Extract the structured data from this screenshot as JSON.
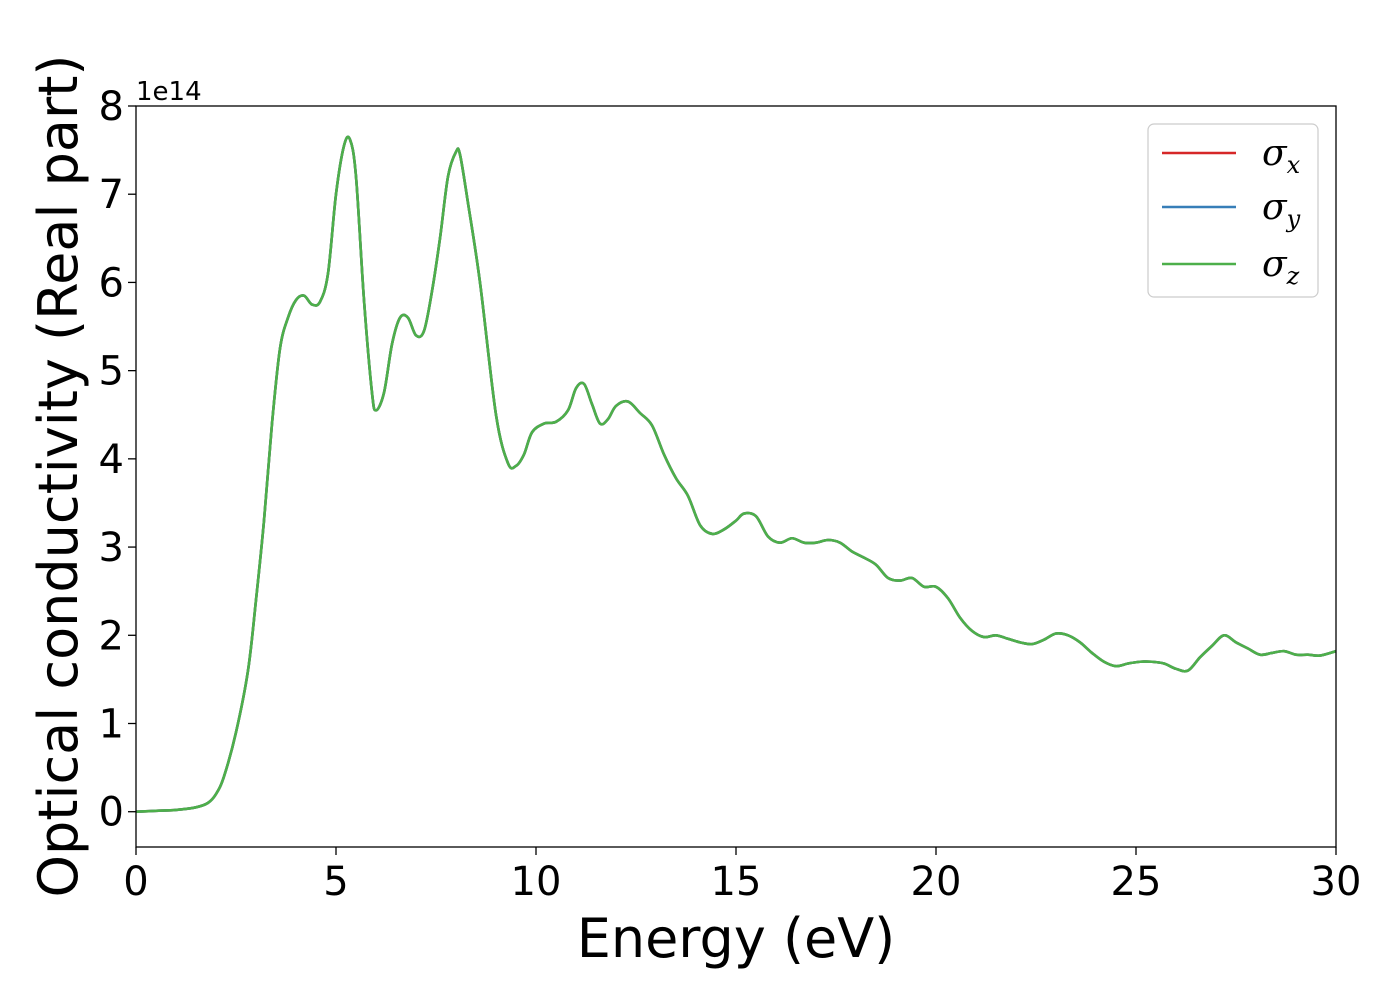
{
  "chart_data": {
    "type": "line",
    "xlabel": "Energy (eV)",
    "ylabel": "Optical conductivity (Real part)",
    "y_offset_text": "1e14",
    "xlim": [
      0,
      30
    ],
    "ylim": [
      -0.4,
      8.0
    ],
    "x_ticks": [
      0,
      5,
      10,
      15,
      20,
      25,
      30
    ],
    "x_tick_labels": [
      "0",
      "5",
      "10",
      "15",
      "20",
      "25",
      "30"
    ],
    "y_ticks": [
      0,
      1,
      2,
      3,
      4,
      5,
      6,
      7,
      8
    ],
    "y_tick_labels": [
      "0",
      "1",
      "2",
      "3",
      "4",
      "5",
      "6",
      "7",
      "8"
    ],
    "grid": false,
    "legend_position": "top-right",
    "colors": {
      "sigma_x": "#d62728",
      "sigma_y": "#377eb8",
      "sigma_z": "#4daf4a"
    },
    "x": [
      0,
      0.5,
      1.0,
      1.5,
      1.8,
      2.0,
      2.2,
      2.5,
      2.8,
      3.0,
      3.2,
      3.4,
      3.6,
      3.8,
      4.0,
      4.2,
      4.4,
      4.6,
      4.8,
      5.0,
      5.2,
      5.35,
      5.5,
      5.7,
      5.9,
      6.0,
      6.2,
      6.4,
      6.6,
      6.8,
      7.0,
      7.2,
      7.4,
      7.6,
      7.8,
      8.0,
      8.1,
      8.3,
      8.6,
      9.0,
      9.3,
      9.5,
      9.7,
      9.9,
      10.2,
      10.5,
      10.8,
      11.0,
      11.2,
      11.4,
      11.6,
      11.8,
      12.0,
      12.3,
      12.6,
      12.9,
      13.2,
      13.5,
      13.8,
      14.1,
      14.4,
      14.7,
      15.0,
      15.2,
      15.5,
      15.8,
      16.1,
      16.4,
      16.7,
      17.0,
      17.3,
      17.6,
      17.9,
      18.2,
      18.5,
      18.8,
      19.1,
      19.4,
      19.7,
      20.0,
      20.3,
      20.6,
      20.9,
      21.2,
      21.5,
      21.8,
      22.1,
      22.4,
      22.7,
      23.0,
      23.3,
      23.6,
      23.9,
      24.2,
      24.5,
      24.8,
      25.1,
      25.4,
      25.7,
      26.0,
      26.3,
      26.6,
      26.9,
      27.2,
      27.5,
      27.8,
      28.1,
      28.4,
      28.7,
      29.0,
      29.3,
      29.6,
      30.0
    ],
    "series": [
      {
        "name": "σx",
        "values": [
          0.0,
          0.01,
          0.02,
          0.05,
          0.1,
          0.2,
          0.4,
          0.9,
          1.6,
          2.4,
          3.3,
          4.4,
          5.25,
          5.6,
          5.8,
          5.85,
          5.75,
          5.78,
          6.1,
          7.0,
          7.55,
          7.62,
          7.2,
          5.8,
          4.75,
          4.55,
          4.75,
          5.3,
          5.6,
          5.6,
          5.4,
          5.45,
          5.9,
          6.5,
          7.2,
          7.48,
          7.45,
          6.9,
          6.0,
          4.5,
          3.95,
          3.92,
          4.05,
          4.3,
          4.4,
          4.42,
          4.55,
          4.8,
          4.85,
          4.62,
          4.4,
          4.45,
          4.6,
          4.65,
          4.52,
          4.38,
          4.05,
          3.78,
          3.58,
          3.25,
          3.15,
          3.2,
          3.3,
          3.38,
          3.35,
          3.12,
          3.05,
          3.1,
          3.05,
          3.05,
          3.08,
          3.05,
          2.95,
          2.88,
          2.8,
          2.65,
          2.62,
          2.65,
          2.55,
          2.55,
          2.42,
          2.2,
          2.05,
          1.98,
          2.0,
          1.96,
          1.92,
          1.9,
          1.95,
          2.02,
          2.0,
          1.92,
          1.8,
          1.7,
          1.65,
          1.68,
          1.7,
          1.7,
          1.68,
          1.62,
          1.6,
          1.75,
          1.88,
          2.0,
          1.92,
          1.85,
          1.78,
          1.8,
          1.82,
          1.78,
          1.78,
          1.77,
          1.82
        ]
      },
      {
        "name": "σy",
        "values": [
          0.0,
          0.01,
          0.02,
          0.05,
          0.1,
          0.2,
          0.4,
          0.9,
          1.6,
          2.4,
          3.3,
          4.4,
          5.25,
          5.6,
          5.8,
          5.85,
          5.75,
          5.78,
          6.1,
          7.0,
          7.55,
          7.62,
          7.2,
          5.8,
          4.75,
          4.55,
          4.75,
          5.3,
          5.6,
          5.6,
          5.4,
          5.45,
          5.9,
          6.5,
          7.2,
          7.48,
          7.45,
          6.9,
          6.0,
          4.5,
          3.95,
          3.92,
          4.05,
          4.3,
          4.4,
          4.42,
          4.55,
          4.8,
          4.85,
          4.62,
          4.4,
          4.45,
          4.6,
          4.65,
          4.52,
          4.38,
          4.05,
          3.78,
          3.58,
          3.25,
          3.15,
          3.2,
          3.3,
          3.38,
          3.35,
          3.12,
          3.05,
          3.1,
          3.05,
          3.05,
          3.08,
          3.05,
          2.95,
          2.88,
          2.8,
          2.65,
          2.62,
          2.65,
          2.55,
          2.55,
          2.42,
          2.2,
          2.05,
          1.98,
          2.0,
          1.96,
          1.92,
          1.9,
          1.95,
          2.02,
          2.0,
          1.92,
          1.8,
          1.7,
          1.65,
          1.68,
          1.7,
          1.7,
          1.68,
          1.62,
          1.6,
          1.75,
          1.88,
          2.0,
          1.92,
          1.85,
          1.78,
          1.8,
          1.82,
          1.78,
          1.78,
          1.77,
          1.82
        ]
      },
      {
        "name": "σz",
        "values": [
          0.0,
          0.01,
          0.02,
          0.05,
          0.1,
          0.2,
          0.4,
          0.9,
          1.6,
          2.4,
          3.3,
          4.4,
          5.25,
          5.6,
          5.8,
          5.85,
          5.75,
          5.78,
          6.1,
          7.0,
          7.55,
          7.62,
          7.2,
          5.8,
          4.75,
          4.55,
          4.75,
          5.3,
          5.6,
          5.6,
          5.4,
          5.45,
          5.9,
          6.5,
          7.2,
          7.48,
          7.45,
          6.9,
          6.0,
          4.5,
          3.95,
          3.92,
          4.05,
          4.3,
          4.4,
          4.42,
          4.55,
          4.8,
          4.85,
          4.62,
          4.4,
          4.45,
          4.6,
          4.65,
          4.52,
          4.38,
          4.05,
          3.78,
          3.58,
          3.25,
          3.15,
          3.2,
          3.3,
          3.38,
          3.35,
          3.12,
          3.05,
          3.1,
          3.05,
          3.05,
          3.08,
          3.05,
          2.95,
          2.88,
          2.8,
          2.65,
          2.62,
          2.65,
          2.55,
          2.55,
          2.42,
          2.2,
          2.05,
          1.98,
          2.0,
          1.96,
          1.92,
          1.9,
          1.95,
          2.02,
          2.0,
          1.92,
          1.8,
          1.7,
          1.65,
          1.68,
          1.7,
          1.7,
          1.68,
          1.62,
          1.6,
          1.75,
          1.88,
          2.0,
          1.92,
          1.85,
          1.78,
          1.8,
          1.82,
          1.78,
          1.78,
          1.77,
          1.82
        ]
      }
    ]
  }
}
